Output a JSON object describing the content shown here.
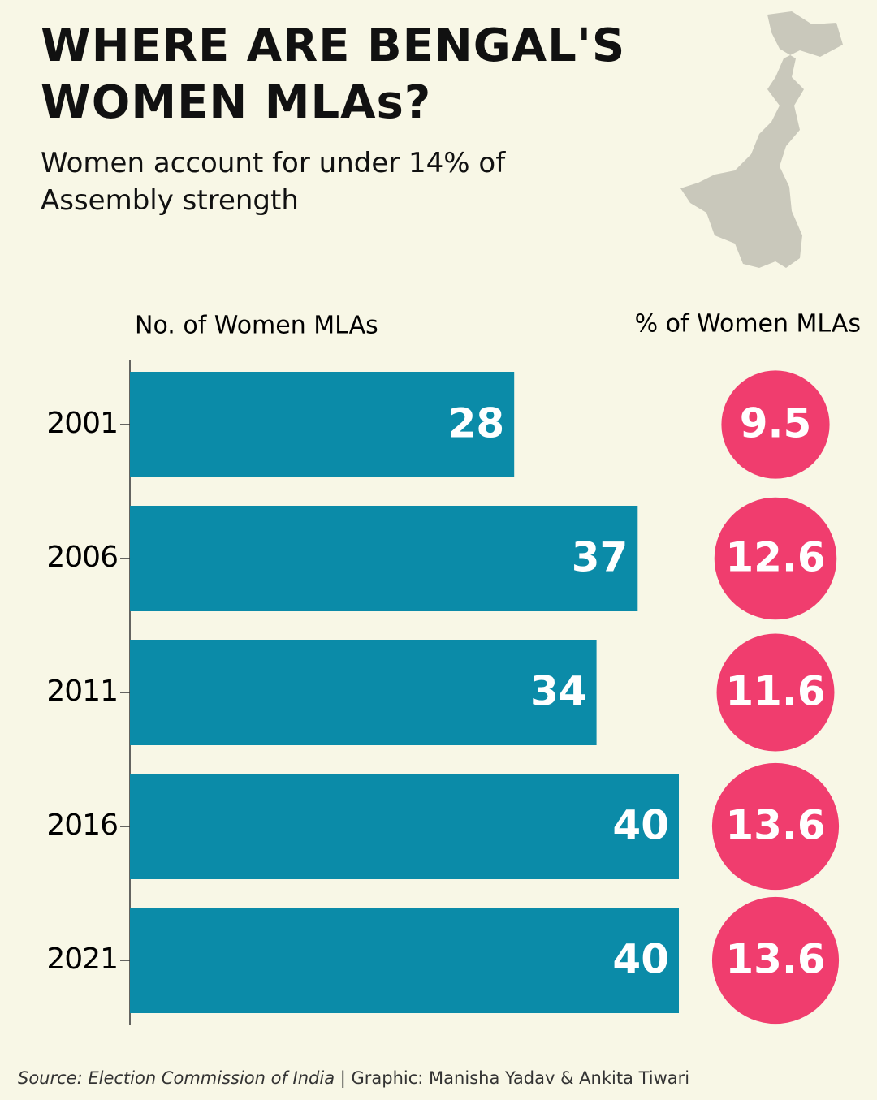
{
  "chart_data": {
    "type": "bar",
    "title": "WHERE ARE BENGAL'S WOMEN MLAs?",
    "subtitle": "Women account for under 14% of Assembly strength",
    "categories": [
      "2001",
      "2006",
      "2011",
      "2016",
      "2021"
    ],
    "series": [
      {
        "name": "No. of Women MLAs",
        "color": "#0b8ba8",
        "values": [
          28,
          37,
          34,
          40,
          40
        ]
      },
      {
        "name": "% of Women MLAs",
        "color": "#f03d6e",
        "values": [
          9.5,
          12.6,
          11.6,
          13.6,
          13.6
        ]
      }
    ],
    "source": "Source: Election Commission of India",
    "credit": "| Graphic: Manisha Yadav & Ankita Tiwari"
  }
}
